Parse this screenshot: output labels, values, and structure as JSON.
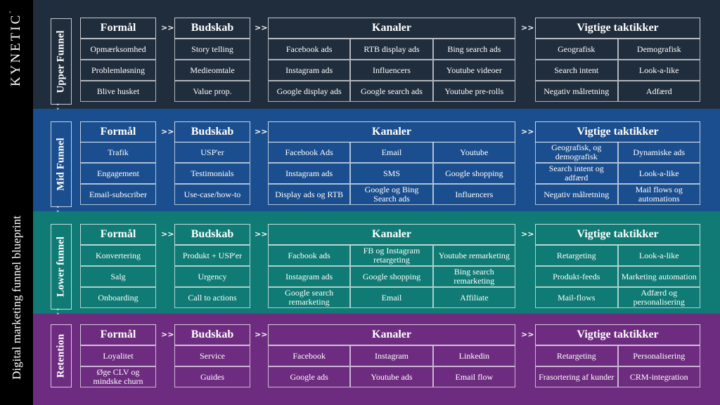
{
  "brand": "KYNETIC",
  "brand_mark": "°",
  "subtitle": "Digital marketing funnel blueprint",
  "arrow_symbol": ">>",
  "down_symbol": "˅",
  "colors": {
    "upper": "#202d3d",
    "mid": "#1b4e8e",
    "lower": "#0f7b74",
    "retention": "#6e2c80"
  },
  "headers": {
    "formaal": "Formål",
    "budskab": "Budskab",
    "kanaler": "Kanaler",
    "taktikker": "Vigtige taktikker"
  },
  "stages": [
    {
      "name": "Upper Funnel",
      "formaal": [
        "Opmærksomhed",
        "Problemløsning",
        "Blive husket"
      ],
      "budskab": [
        "Story telling",
        "Medieomtale",
        "Value prop."
      ],
      "kanaler": [
        [
          "Facebook ads",
          "RTB display ads",
          "Bing search ads"
        ],
        [
          "Instagram ads",
          "Influencers",
          "Youtube videoer"
        ],
        [
          "Google display ads",
          "Google search ads",
          "Youtube pre-rolls"
        ]
      ],
      "taktikker": [
        [
          "Geografisk",
          "Demografisk"
        ],
        [
          "Search intent",
          "Look-a-like"
        ],
        [
          "Negativ målretning",
          "Adfærd"
        ]
      ]
    },
    {
      "name": "Mid Funnel",
      "formaal": [
        "Trafik",
        "Engagement",
        "Email-subscriber"
      ],
      "budskab": [
        "USP'er",
        "Testimonials",
        "Use-case/how-to"
      ],
      "kanaler": [
        [
          "Facebook Ads",
          "Email",
          "Youtube"
        ],
        [
          "Instagram ads",
          "SMS",
          "Google shopping"
        ],
        [
          "Display ads og RTB",
          "Google og Bing Search ads",
          "Influencers"
        ]
      ],
      "taktikker": [
        [
          "Geografisk, og demografisk",
          "Dynamiske ads"
        ],
        [
          "Search intent og adfærd",
          "Look-a-like"
        ],
        [
          "Negativ målretning",
          "Mail flows og automations"
        ]
      ]
    },
    {
      "name": "Lower funnel",
      "formaal": [
        "Konvertering",
        "Salg",
        "Onboarding"
      ],
      "budskab": [
        "Produkt + USP'er",
        "Urgency",
        "Call to actions"
      ],
      "kanaler": [
        [
          "Facbook ads",
          "FB og Instagram retargeting",
          "Youtube remarketing"
        ],
        [
          "Instagram ads",
          "Google shopping",
          "Bing search remarketing"
        ],
        [
          "Google search remarketing",
          "Email",
          "Affiliate"
        ]
      ],
      "taktikker": [
        [
          "Retargeting",
          "Look-a-like"
        ],
        [
          "Produkt-feeds",
          "Marketing automation"
        ],
        [
          "Mail-flows",
          "Adfærd og personalisering"
        ]
      ]
    },
    {
      "name": "Retention",
      "formaal": [
        "Loyalitet",
        "Øge CLV og mindske churn"
      ],
      "budskab": [
        "Service",
        "Guides"
      ],
      "kanaler": [
        [
          "Facebook",
          "Instagram",
          "Linkedin"
        ],
        [
          "Google ads",
          "Youtube ads",
          "Email flow"
        ]
      ],
      "taktikker": [
        [
          "Retargeting",
          "Personalisering"
        ],
        [
          "Frasortering af kunder",
          "CRM-integration"
        ]
      ]
    }
  ]
}
